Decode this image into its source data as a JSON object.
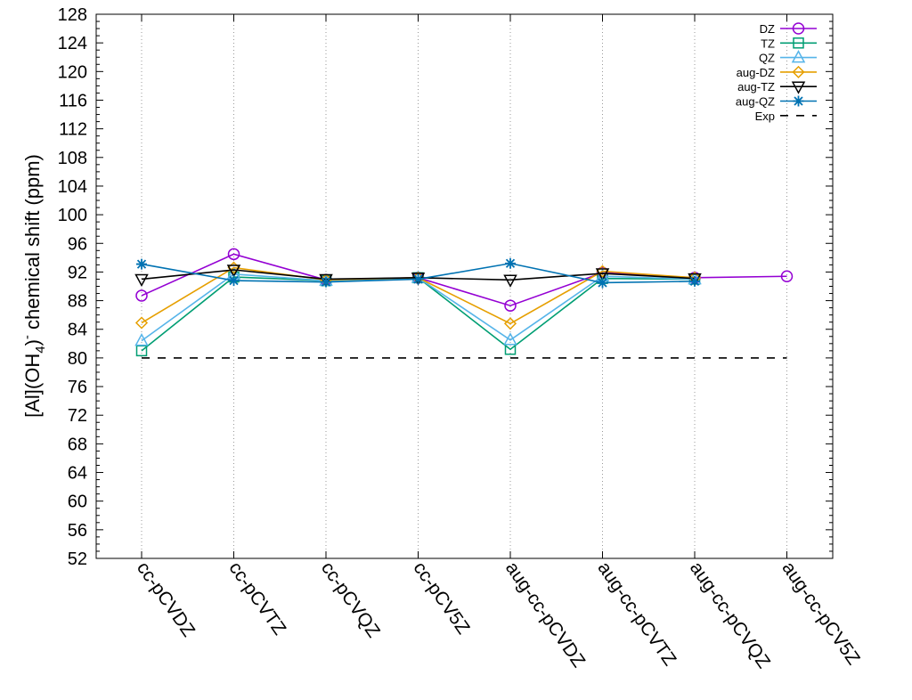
{
  "chart_data": {
    "type": "line",
    "ylabel_parts": {
      "pre": "[Al](OH",
      "sub": "4",
      "post": ")",
      "sup": "-",
      "tail": " chemical shift (ppm)"
    },
    "ylabel": "[Al](OH4)- chemical shift (ppm)",
    "xlabel": "",
    "ylim": [
      52,
      128
    ],
    "yticks": [
      52,
      56,
      60,
      64,
      68,
      72,
      76,
      80,
      84,
      88,
      92,
      96,
      100,
      104,
      108,
      112,
      116,
      120,
      124,
      128
    ],
    "categories": [
      "cc-pCVDZ",
      "cc-pCVTZ",
      "cc-pCVQZ",
      "cc-pCV5Z",
      "aug-cc-pCVDZ",
      "aug-cc-pCVTZ",
      "aug-cc-pCVQZ",
      "aug-cc-pCV5Z"
    ],
    "grid": "vertical dotted lines at categories",
    "legend_position": "top-right",
    "series": [
      {
        "name": "DZ",
        "color": "#9400d3",
        "marker": "circle",
        "values": [
          88.7,
          94.5,
          90.9,
          91.2,
          87.3,
          91.9,
          91.2,
          91.4
        ]
      },
      {
        "name": "TZ",
        "color": "#009e73",
        "marker": "square",
        "values": [
          81.0,
          91.3,
          90.8,
          91.2,
          81.2,
          91.1,
          91.0,
          null
        ]
      },
      {
        "name": "QZ",
        "color": "#56b4e9",
        "marker": "triangle-up",
        "values": [
          82.4,
          91.7,
          90.8,
          91.2,
          82.5,
          91.4,
          91.0,
          null
        ]
      },
      {
        "name": "aug-DZ",
        "color": "#e69f00",
        "marker": "diamond",
        "values": [
          84.9,
          92.6,
          90.9,
          91.2,
          84.8,
          92.1,
          91.2,
          null
        ]
      },
      {
        "name": "aug-TZ",
        "color": "#000000",
        "marker": "triangle-down",
        "values": [
          91.0,
          92.3,
          91.0,
          91.2,
          90.9,
          91.8,
          91.1,
          null
        ]
      },
      {
        "name": "aug-QZ",
        "color": "#0072b2",
        "marker": "star",
        "values": [
          93.1,
          90.8,
          90.6,
          91.0,
          93.2,
          90.5,
          90.7,
          null
        ]
      },
      {
        "name": "Exp",
        "color": "#000000",
        "marker": "none",
        "dashed": true,
        "values": [
          80,
          80,
          80,
          80,
          80,
          80,
          80,
          80
        ]
      }
    ]
  }
}
